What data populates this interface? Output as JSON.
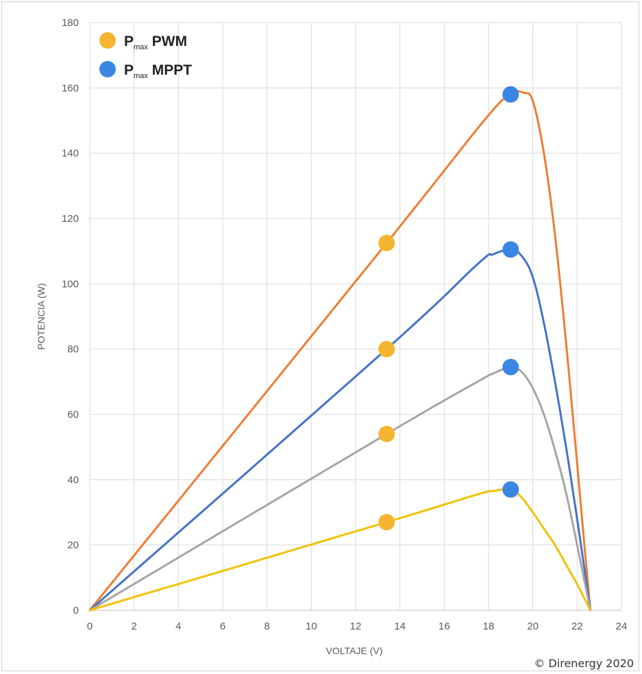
{
  "chart_data": {
    "type": "line",
    "xlabel": "VOLTAJE (V)",
    "ylabel": "POTENCIA (W)",
    "xlim": [
      0,
      24
    ],
    "ylim": [
      0,
      180
    ],
    "x_ticks": [
      "0",
      "2",
      "4",
      "6",
      "8",
      "10",
      "12",
      "14",
      "16",
      "18",
      "20",
      "22",
      "24"
    ],
    "y_ticks": [
      "0",
      "20",
      "40",
      "60",
      "80",
      "100",
      "120",
      "140",
      "160",
      "180"
    ],
    "grid": true,
    "legend_position": "top-left",
    "series": [
      {
        "color": "#ED7D31",
        "points": [
          [
            0,
            0
          ],
          [
            13.4,
            112.5
          ],
          [
            17.8,
            150
          ],
          [
            19,
            158
          ],
          [
            19.6,
            158.5
          ],
          [
            20,
            156
          ],
          [
            20.5,
            140
          ],
          [
            21,
            115
          ],
          [
            21.5,
            82
          ],
          [
            22,
            45
          ],
          [
            22.3,
            22
          ],
          [
            22.6,
            0
          ]
        ]
      },
      {
        "color": "#4472C4",
        "points": [
          [
            0,
            0
          ],
          [
            13.4,
            80
          ],
          [
            17.5,
            106
          ],
          [
            18.2,
            109
          ],
          [
            19,
            110.5
          ],
          [
            19.5,
            108.5
          ],
          [
            20,
            102
          ],
          [
            20.5,
            88
          ],
          [
            21,
            70
          ],
          [
            21.5,
            50
          ],
          [
            22,
            28
          ],
          [
            22.3,
            14
          ],
          [
            22.6,
            0
          ]
        ]
      },
      {
        "color": "#A5A5A5",
        "points": [
          [
            0,
            0
          ],
          [
            13.4,
            54
          ],
          [
            17.5,
            70
          ],
          [
            18.2,
            72.5
          ],
          [
            19,
            74.5
          ],
          [
            19.5,
            73
          ],
          [
            20,
            68
          ],
          [
            20.5,
            60
          ],
          [
            21,
            49
          ],
          [
            21.5,
            36
          ],
          [
            22,
            20
          ],
          [
            22.3,
            10
          ],
          [
            22.6,
            0
          ]
        ]
      },
      {
        "color": "#F2C100",
        "points": [
          [
            0,
            0
          ],
          [
            13.4,
            27
          ],
          [
            17.5,
            35.5
          ],
          [
            18.2,
            36.5
          ],
          [
            19,
            37
          ],
          [
            19.5,
            34.5
          ],
          [
            20,
            30
          ],
          [
            20.5,
            25
          ],
          [
            21,
            20
          ],
          [
            21.5,
            14
          ],
          [
            22,
            8
          ],
          [
            22.3,
            4
          ],
          [
            22.6,
            0
          ]
        ]
      }
    ],
    "markers": {
      "pwm": {
        "label_main": "P",
        "label_sub": "max",
        "label_rest": "PWM",
        "color": "#F5B530",
        "points": [
          [
            13.4,
            112.5
          ],
          [
            13.4,
            80
          ],
          [
            13.4,
            54
          ],
          [
            13.4,
            27
          ]
        ]
      },
      "mppt": {
        "label_main": "P",
        "label_sub": "max",
        "label_rest": "MPPT",
        "color": "#3A86E3",
        "points": [
          [
            19,
            158
          ],
          [
            19,
            110.5
          ],
          [
            19,
            74.5
          ],
          [
            19,
            37
          ]
        ]
      }
    },
    "copyright": "© Direnergy 2020"
  }
}
